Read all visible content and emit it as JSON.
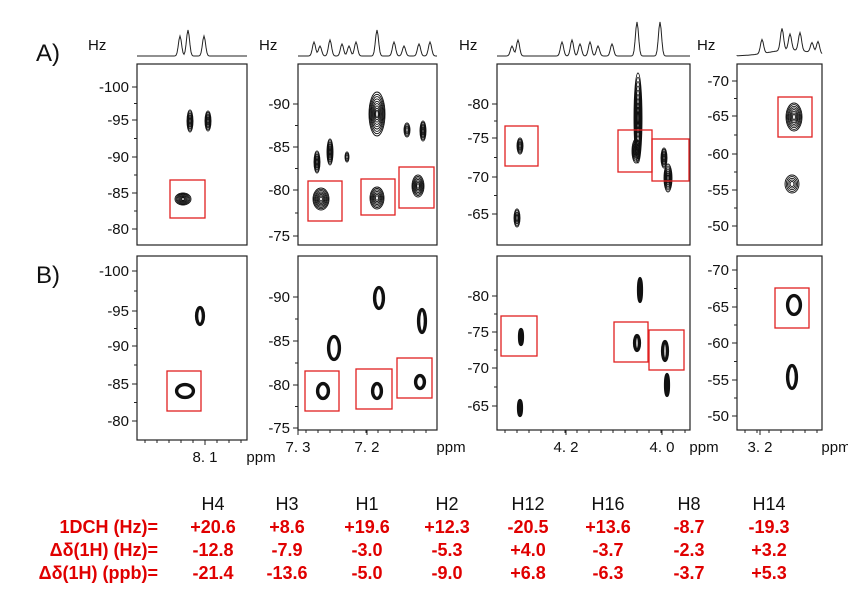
{
  "row_labels": [
    "A)",
    "B)"
  ],
  "chart_data": {
    "type": "scatter",
    "description_units": {
      "x": "ppm",
      "y": "Hz"
    },
    "panels": [
      {
        "id": "p1",
        "x_ticks": [
          "8. 1"
        ],
        "xunit": "ppm",
        "yunit": "Hz",
        "ylim": [
          -78,
          -103
        ],
        "yticks": [
          -100,
          -95,
          -90,
          -85,
          -80
        ]
      },
      {
        "id": "p2",
        "x_ticks": [
          "7. 3",
          "7. 2"
        ],
        "xunit": "ppm",
        "yunit": "Hz",
        "ylim": [
          -73,
          -96
        ],
        "yticks": [
          -90,
          -85,
          -80,
          -75
        ]
      },
      {
        "id": "p3",
        "x_ticks": [
          "4. 2",
          "4. 0"
        ],
        "xunit": "ppm",
        "yunit": "Hz",
        "ylim": [
          -60,
          -87
        ],
        "yticks": [
          -80,
          -75,
          -70,
          -65
        ]
      },
      {
        "id": "p4",
        "x_ticks": [
          "3. 2"
        ],
        "xunit": "ppm",
        "yunit": "Hz",
        "ylim": [
          -47,
          -73
        ],
        "yticks": [
          -70,
          -65,
          -60,
          -55,
          -50
        ]
      }
    ]
  },
  "table": {
    "headers": [
      "H4",
      "H3",
      "H1",
      "H2",
      "H12",
      "H16",
      "H8",
      "H14"
    ],
    "rows": [
      {
        "label": "1DCH (Hz)=",
        "values": [
          "+20.6",
          "+8.6",
          "+19.6",
          "+12.3",
          "-20.5",
          "+13.6",
          "-8.7",
          "-19.3"
        ]
      },
      {
        "label": "Δδ(1H) (Hz)=",
        "values": [
          "-12.8",
          "-7.9",
          "-3.0",
          "-5.3",
          "+4.0",
          "-3.7",
          "-2.3",
          "+3.2"
        ]
      },
      {
        "label": "Δδ(1H) (ppb)=",
        "values": [
          "-21.4",
          "-13.6",
          "-5.0",
          "-9.0",
          "+6.8",
          "-6.3",
          "-3.7",
          "+5.3"
        ]
      }
    ]
  }
}
